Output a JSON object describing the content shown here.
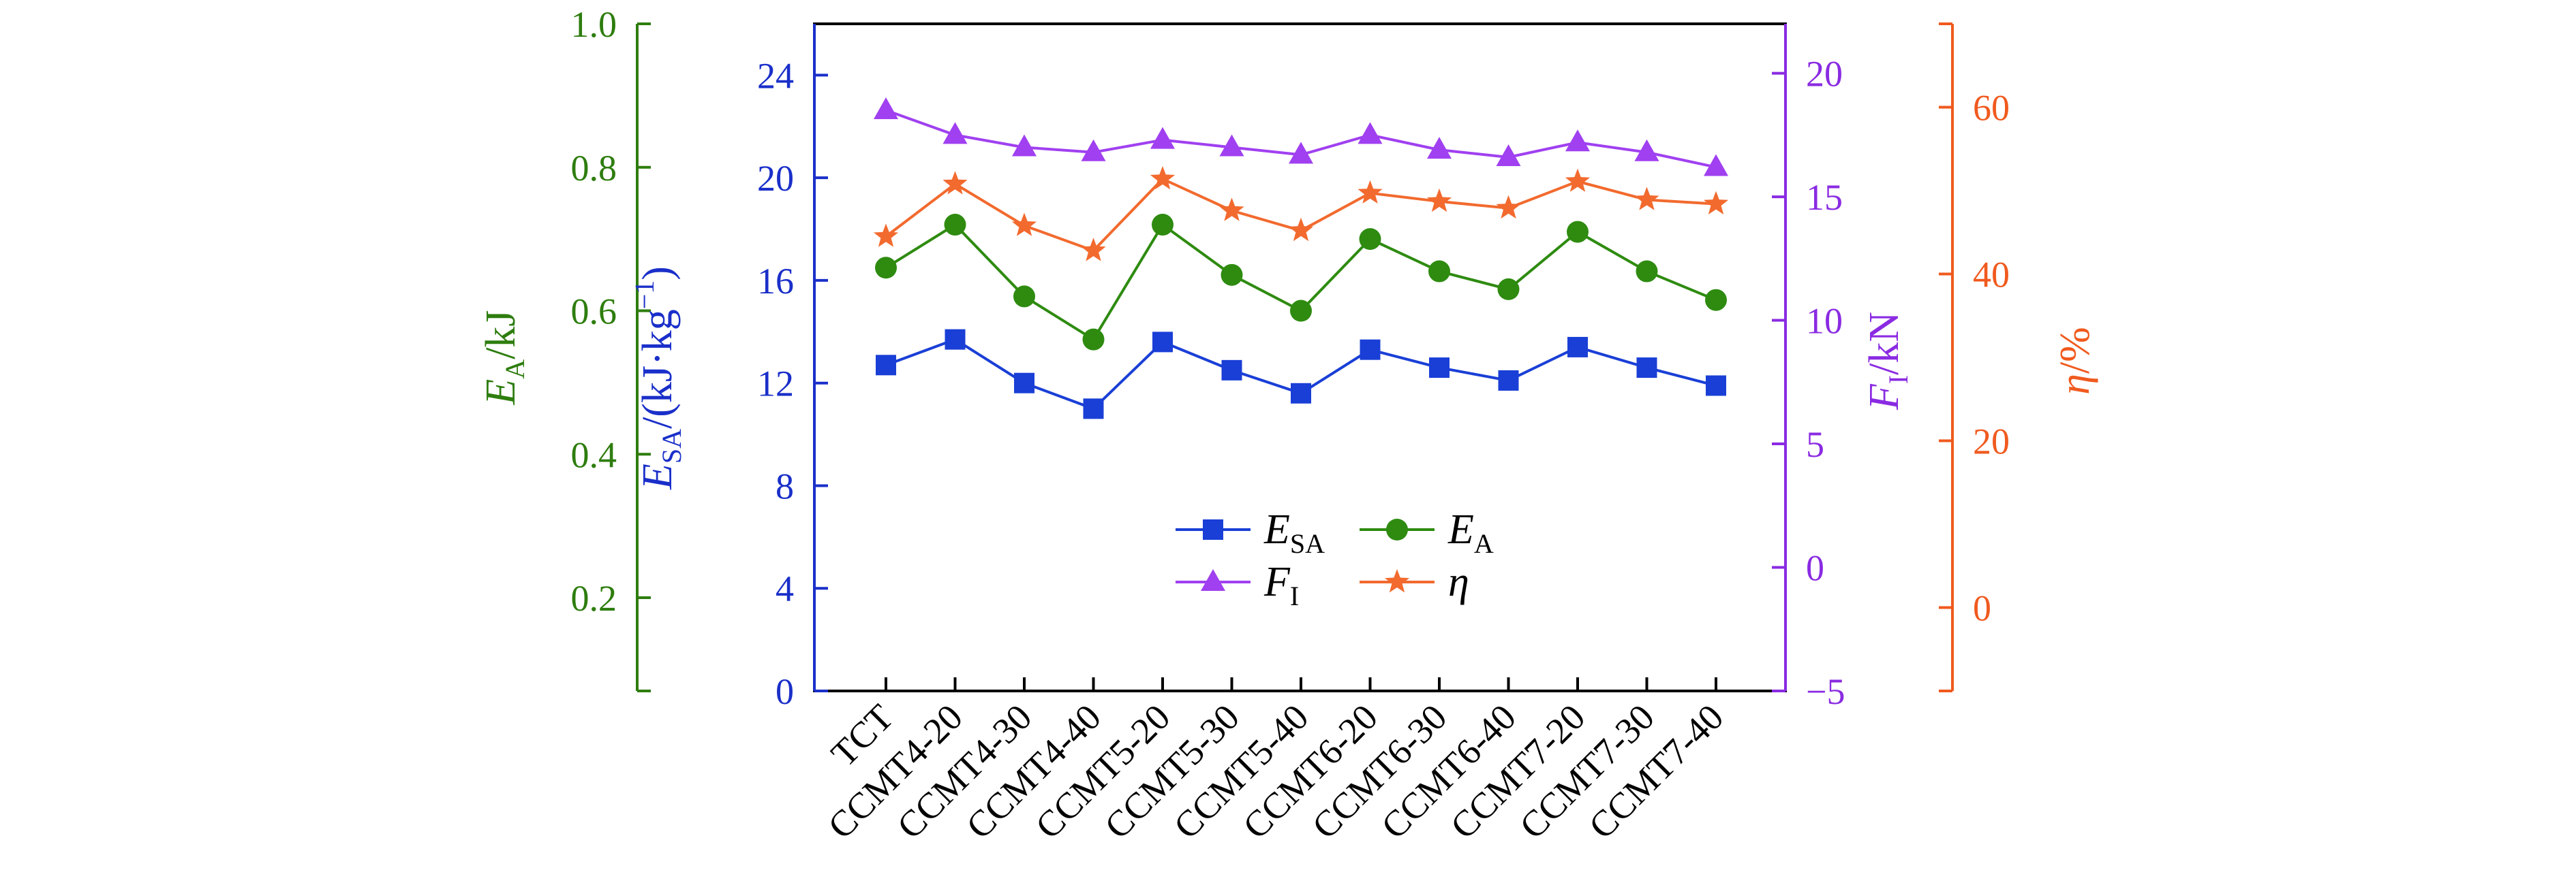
{
  "chart_data": {
    "type": "line",
    "categories": [
      "TCT",
      "CCMT4-20",
      "CCMT4-30",
      "CCMT4-40",
      "CCMT5-20",
      "CCMT5-30",
      "CCMT5-40",
      "CCMT6-20",
      "CCMT6-30",
      "CCMT6-40",
      "CCMT7-20",
      "CCMT7-30",
      "CCMT7-40"
    ],
    "axes": {
      "ea": {
        "label_main": "E",
        "label_sub": "A",
        "label_rest": "/kJ",
        "range": [
          0.07,
          1.0
        ],
        "ticks": [
          0.2,
          0.4,
          0.6,
          0.8,
          1.0
        ],
        "tick_labels": [
          "0.2",
          "0.4",
          "0.6",
          "0.8",
          "1.0"
        ],
        "color": "#2e7d0e"
      },
      "esa": {
        "label_main": "E",
        "label_sub": "SA",
        "label_rest": "/(kJ·kg",
        "label_sup": "−1",
        "label_close": ")",
        "range": [
          0,
          26
        ],
        "ticks": [
          0,
          4,
          8,
          12,
          16,
          20,
          24
        ],
        "tick_labels": [
          "0",
          "4",
          "8",
          "12",
          "16",
          "20",
          "24"
        ],
        "color": "#1a2fc9"
      },
      "fi": {
        "label_main": "F",
        "label_sub": "I",
        "label_rest": "/kN",
        "range": [
          -5,
          22
        ],
        "ticks": [
          -5,
          0,
          5,
          10,
          15,
          20
        ],
        "tick_labels": [
          "−5",
          "0",
          "5",
          "10",
          "15",
          "20"
        ],
        "color": "#8a2be2"
      },
      "eta": {
        "label_main": "η",
        "label_rest": "/%",
        "range": [
          -10,
          70
        ],
        "ticks": [
          0,
          20,
          40,
          60
        ],
        "tick_labels": [
          "0",
          "20",
          "40",
          "60"
        ],
        "color": "#f05a1e"
      }
    },
    "series": [
      {
        "key": "esa",
        "name_main": "E",
        "name_sub": "SA",
        "axis": "esa",
        "marker": "square",
        "color": "#1a3fd6",
        "values": [
          12.7,
          13.7,
          12.0,
          11.0,
          13.6,
          12.5,
          11.6,
          13.3,
          12.6,
          12.1,
          13.4,
          12.6,
          11.9
        ]
      },
      {
        "key": "ea",
        "name_main": "E",
        "name_sub": "A",
        "axis": "ea",
        "marker": "circle",
        "color": "#2e8b10",
        "values": [
          0.66,
          0.72,
          0.62,
          0.56,
          0.72,
          0.65,
          0.6,
          0.7,
          0.655,
          0.63,
          0.71,
          0.655,
          0.615
        ]
      },
      {
        "key": "fi",
        "name_main": "F",
        "name_sub": "I",
        "axis": "fi",
        "marker": "triangle",
        "color": "#a040f0",
        "values": [
          18.5,
          17.5,
          17.0,
          16.8,
          17.3,
          17.0,
          16.7,
          17.5,
          16.9,
          16.6,
          17.2,
          16.8,
          16.2
        ]
      },
      {
        "key": "eta",
        "name_main": "η",
        "name_sub": "",
        "axis": "eta",
        "marker": "star",
        "color": "#f26a2e",
        "values": [
          44.5,
          50.8,
          45.8,
          42.8,
          51.4,
          47.6,
          45.2,
          49.7,
          48.7,
          47.9,
          51.1,
          48.9,
          48.4
        ]
      }
    ],
    "legend_position": "center-bottom",
    "grid": false
  }
}
